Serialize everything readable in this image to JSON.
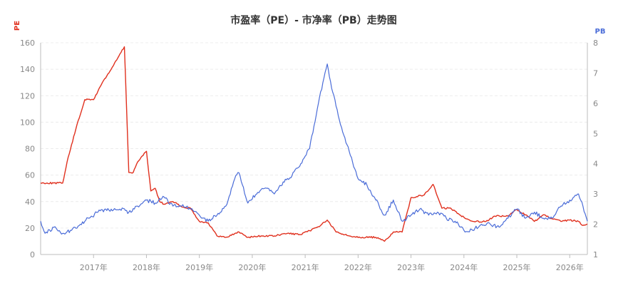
{
  "colors": {
    "pe": "#e0301e",
    "pb": "#4a6cd8",
    "title": "#333333",
    "tick": "#888888"
  },
  "chart_data": {
    "type": "line",
    "title": "市盈率（PE）- 市净率（PB）走势图",
    "y_left": {
      "label": "PE",
      "range": [
        0,
        160
      ],
      "ticks": [
        "0",
        "20",
        "40",
        "60",
        "80",
        "100",
        "120",
        "140",
        "160"
      ]
    },
    "y_right": {
      "label": "PB",
      "range": [
        1,
        8
      ],
      "ticks": [
        "1",
        "2",
        "3",
        "4",
        "5",
        "6",
        "7",
        "8"
      ]
    },
    "x": {
      "range": [
        "2016-01",
        "2026-05"
      ],
      "tick_labels": [
        "2017年",
        "2018年",
        "2019年",
        "2020年",
        "2021年",
        "2022年",
        "2023年",
        "2024年",
        "2025年",
        "2026年"
      ]
    },
    "grid": true,
    "legend": "none",
    "series": [
      {
        "axis": "left",
        "values": [
          [
            "2016-01",
            54
          ],
          [
            "2016-04",
            54
          ],
          [
            "2016-06",
            54
          ],
          [
            "2016-07",
            70
          ],
          [
            "2016-09",
            95
          ],
          [
            "2016-11",
            117
          ],
          [
            "2017-01",
            117
          ],
          [
            "2017-03",
            130
          ],
          [
            "2017-05",
            140
          ],
          [
            "2017-08",
            157
          ],
          [
            "2017-09",
            62
          ],
          [
            "2017-10",
            62
          ],
          [
            "2017-11",
            70
          ],
          [
            "2018-01",
            78
          ],
          [
            "2018-02",
            48
          ],
          [
            "2018-03",
            50
          ],
          [
            "2018-04",
            40
          ],
          [
            "2018-05",
            38
          ],
          [
            "2018-07",
            40
          ],
          [
            "2018-09",
            36
          ],
          [
            "2018-11",
            35
          ],
          [
            "2019-01",
            25
          ],
          [
            "2019-03",
            24
          ],
          [
            "2019-05",
            14
          ],
          [
            "2019-07",
            13
          ],
          [
            "2019-10",
            17
          ],
          [
            "2019-12",
            13
          ],
          [
            "2020-03",
            14
          ],
          [
            "2020-06",
            14
          ],
          [
            "2020-09",
            16
          ],
          [
            "2020-12",
            15
          ],
          [
            "2021-02",
            18
          ],
          [
            "2021-04",
            21
          ],
          [
            "2021-06",
            26
          ],
          [
            "2021-08",
            17
          ],
          [
            "2021-11",
            14
          ],
          [
            "2022-02",
            13
          ],
          [
            "2022-05",
            13
          ],
          [
            "2022-07",
            10
          ],
          [
            "2022-09",
            17
          ],
          [
            "2022-11",
            17
          ],
          [
            "2023-01",
            43
          ],
          [
            "2023-04",
            45
          ],
          [
            "2023-06",
            53
          ],
          [
            "2023-08",
            35
          ],
          [
            "2023-10",
            35
          ],
          [
            "2023-12",
            30
          ],
          [
            "2024-03",
            25
          ],
          [
            "2024-06",
            25
          ],
          [
            "2024-08",
            29
          ],
          [
            "2024-11",
            29
          ],
          [
            "2025-01",
            34
          ],
          [
            "2025-03",
            30
          ],
          [
            "2025-05",
            25
          ],
          [
            "2025-07",
            30
          ],
          [
            "2025-09",
            27
          ],
          [
            "2025-11",
            25
          ],
          [
            "2026-01",
            26
          ],
          [
            "2026-03",
            25
          ],
          [
            "2026-04",
            22
          ],
          [
            "2026-05",
            23
          ]
        ]
      },
      {
        "axis": "right",
        "values": [
          [
            "2016-01",
            2.1
          ],
          [
            "2016-02",
            1.7
          ],
          [
            "2016-04",
            1.9
          ],
          [
            "2016-06",
            1.7
          ],
          [
            "2016-08",
            1.8
          ],
          [
            "2016-10",
            2.0
          ],
          [
            "2016-12",
            2.2
          ],
          [
            "2017-02",
            2.4
          ],
          [
            "2017-05",
            2.5
          ],
          [
            "2017-07",
            2.5
          ],
          [
            "2017-09",
            2.4
          ],
          [
            "2017-11",
            2.6
          ],
          [
            "2018-01",
            2.8
          ],
          [
            "2018-03",
            2.7
          ],
          [
            "2018-05",
            2.9
          ],
          [
            "2018-07",
            2.6
          ],
          [
            "2018-09",
            2.6
          ],
          [
            "2018-11",
            2.5
          ],
          [
            "2019-01",
            2.3
          ],
          [
            "2019-03",
            2.1
          ],
          [
            "2019-05",
            2.3
          ],
          [
            "2019-07",
            2.6
          ],
          [
            "2019-09",
            3.5
          ],
          [
            "2019-10",
            3.7
          ],
          [
            "2019-12",
            2.7
          ],
          [
            "2020-02",
            3.0
          ],
          [
            "2020-04",
            3.2
          ],
          [
            "2020-06",
            3.0
          ],
          [
            "2020-08",
            3.4
          ],
          [
            "2020-10",
            3.6
          ],
          [
            "2020-12",
            4.0
          ],
          [
            "2021-02",
            4.5
          ],
          [
            "2021-04",
            6.0
          ],
          [
            "2021-06",
            7.3
          ],
          [
            "2021-07",
            6.5
          ],
          [
            "2021-09",
            5.3
          ],
          [
            "2021-11",
            4.4
          ],
          [
            "2022-01",
            3.5
          ],
          [
            "2022-03",
            3.3
          ],
          [
            "2022-05",
            2.8
          ],
          [
            "2022-07",
            2.3
          ],
          [
            "2022-09",
            2.8
          ],
          [
            "2022-11",
            2.1
          ],
          [
            "2023-01",
            2.3
          ],
          [
            "2023-03",
            2.5
          ],
          [
            "2023-05",
            2.3
          ],
          [
            "2023-07",
            2.4
          ],
          [
            "2023-09",
            2.2
          ],
          [
            "2023-11",
            2.1
          ],
          [
            "2024-01",
            1.8
          ],
          [
            "2024-03",
            1.8
          ],
          [
            "2024-05",
            2.0
          ],
          [
            "2024-07",
            2.0
          ],
          [
            "2024-09",
            1.9
          ],
          [
            "2024-11",
            2.2
          ],
          [
            "2025-01",
            2.5
          ],
          [
            "2025-03",
            2.2
          ],
          [
            "2025-05",
            2.4
          ],
          [
            "2025-07",
            2.2
          ],
          [
            "2025-09",
            2.2
          ],
          [
            "2025-11",
            2.6
          ],
          [
            "2026-01",
            2.8
          ],
          [
            "2026-03",
            3.0
          ],
          [
            "2026-04",
            2.6
          ],
          [
            "2026-05",
            2.1
          ]
        ]
      }
    ]
  }
}
